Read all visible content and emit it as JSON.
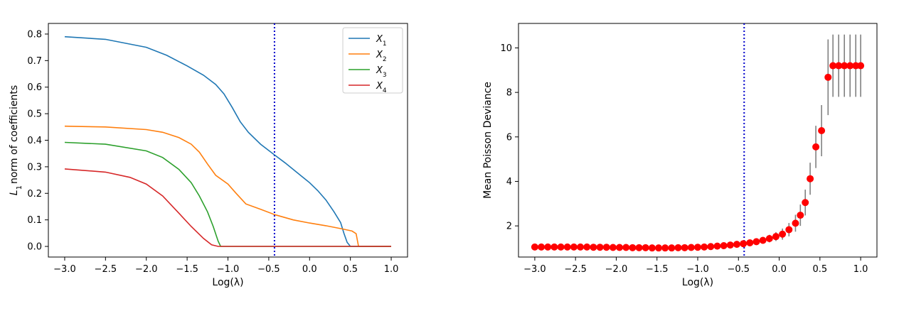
{
  "chart_data": [
    {
      "type": "line",
      "title": "",
      "xlabel": "Log(λ)",
      "ylabel": "L1 norm of coefficients",
      "xlim": [
        -3.2,
        1.2
      ],
      "ylim": [
        -0.04,
        0.84
      ],
      "xticks": [
        -3.0,
        -2.5,
        -2.0,
        -1.5,
        -1.0,
        -0.5,
        0.0,
        0.5,
        1.0
      ],
      "xtick_labels": [
        "−3.0",
        "−2.5",
        "−2.0",
        "−1.5",
        "−1.0",
        "−0.5",
        "0.0",
        "0.5",
        "1.0"
      ],
      "yticks": [
        0.0,
        0.1,
        0.2,
        0.3,
        0.4,
        0.5,
        0.6,
        0.7,
        0.8
      ],
      "ytick_labels": [
        "0.0",
        "0.1",
        "0.2",
        "0.3",
        "0.4",
        "0.5",
        "0.6",
        "0.7",
        "0.8"
      ],
      "vline": {
        "x": -0.43,
        "color": "#0000cc",
        "style": "dotted"
      },
      "grid": false,
      "legend": "top-right",
      "series": [
        {
          "name": "X1",
          "sub": "1",
          "color": "#1f77b4",
          "x": [
            -3.0,
            -2.5,
            -2.0,
            -1.75,
            -1.5,
            -1.3,
            -1.15,
            -1.05,
            -0.95,
            -0.85,
            -0.75,
            -0.6,
            -0.43,
            -0.3,
            -0.1,
            0.0,
            0.1,
            0.2,
            0.3,
            0.38,
            0.42,
            0.46,
            0.5,
            1.0
          ],
          "y": [
            0.79,
            0.78,
            0.75,
            0.72,
            0.68,
            0.645,
            0.61,
            0.575,
            0.525,
            0.47,
            0.43,
            0.385,
            0.345,
            0.315,
            0.265,
            0.24,
            0.21,
            0.175,
            0.13,
            0.09,
            0.05,
            0.015,
            0.0,
            0.0
          ]
        },
        {
          "name": "X2",
          "sub": "2",
          "color": "#ff7f0e",
          "x": [
            -3.0,
            -2.5,
            -2.0,
            -1.8,
            -1.6,
            -1.45,
            -1.35,
            -1.25,
            -1.15,
            -1.0,
            -0.9,
            -0.78,
            -0.6,
            -0.43,
            -0.2,
            0.0,
            0.2,
            0.4,
            0.52,
            0.57,
            0.6,
            1.0
          ],
          "y": [
            0.453,
            0.45,
            0.44,
            0.43,
            0.41,
            0.385,
            0.355,
            0.31,
            0.268,
            0.235,
            0.2,
            0.16,
            0.14,
            0.12,
            0.1,
            0.088,
            0.078,
            0.066,
            0.058,
            0.048,
            0.0,
            0.0
          ]
        },
        {
          "name": "X3",
          "sub": "3",
          "color": "#2ca02c",
          "x": [
            -3.0,
            -2.5,
            -2.0,
            -1.8,
            -1.6,
            -1.45,
            -1.35,
            -1.25,
            -1.18,
            -1.12,
            -1.09,
            1.0
          ],
          "y": [
            0.392,
            0.385,
            0.36,
            0.335,
            0.29,
            0.24,
            0.19,
            0.13,
            0.075,
            0.02,
            0.0,
            0.0
          ]
        },
        {
          "name": "X4",
          "sub": "4",
          "color": "#d62728",
          "x": [
            -3.0,
            -2.5,
            -2.2,
            -2.0,
            -1.8,
            -1.6,
            -1.45,
            -1.3,
            -1.2,
            -1.12,
            1.0
          ],
          "y": [
            0.292,
            0.28,
            0.26,
            0.235,
            0.19,
            0.125,
            0.075,
            0.03,
            0.006,
            0.0,
            0.0
          ]
        }
      ]
    },
    {
      "type": "scatter",
      "title": "",
      "xlabel": "Log(λ)",
      "ylabel": "Mean Poisson Deviance",
      "xlim": [
        -3.2,
        1.2
      ],
      "ylim": [
        0.6,
        11.1
      ],
      "xticks": [
        -3.0,
        -2.5,
        -2.0,
        -1.5,
        -1.0,
        -0.5,
        0.0,
        0.5,
        1.0
      ],
      "xtick_labels": [
        "−3.0",
        "−2.5",
        "−2.0",
        "−1.5",
        "−1.0",
        "−0.5",
        "0.0",
        "0.5",
        "1.0"
      ],
      "yticks": [
        2,
        4,
        6,
        8,
        10
      ],
      "ytick_labels": [
        "2",
        "4",
        "6",
        "8",
        "10"
      ],
      "vline": {
        "x": -0.43,
        "color": "#0000cc",
        "style": "dotted"
      },
      "grid": false,
      "marker_color": "#ff0000",
      "errorbar_color": "#808080",
      "x": [
        -3.0,
        -2.92,
        -2.84,
        -2.76,
        -2.68,
        -2.6,
        -2.52,
        -2.44,
        -2.36,
        -2.28,
        -2.2,
        -2.12,
        -2.04,
        -1.96,
        -1.88,
        -1.8,
        -1.72,
        -1.64,
        -1.56,
        -1.48,
        -1.4,
        -1.32,
        -1.24,
        -1.16,
        -1.08,
        -1.0,
        -0.92,
        -0.84,
        -0.76,
        -0.68,
        -0.6,
        -0.52,
        -0.44,
        -0.36,
        -0.28,
        -0.2,
        -0.12,
        -0.04,
        0.04,
        0.12,
        0.2,
        0.26,
        0.32,
        0.38,
        0.45,
        0.52,
        0.6,
        0.66,
        0.73,
        0.8,
        0.87,
        0.94,
        1.0
      ],
      "y": [
        1.05,
        1.05,
        1.05,
        1.05,
        1.05,
        1.05,
        1.05,
        1.05,
        1.05,
        1.04,
        1.04,
        1.04,
        1.03,
        1.03,
        1.03,
        1.02,
        1.02,
        1.02,
        1.01,
        1.01,
        1.01,
        1.01,
        1.02,
        1.02,
        1.03,
        1.04,
        1.05,
        1.07,
        1.09,
        1.11,
        1.14,
        1.17,
        1.2,
        1.24,
        1.29,
        1.35,
        1.43,
        1.52,
        1.63,
        1.83,
        2.12,
        2.48,
        3.05,
        4.12,
        5.55,
        6.28,
        8.68,
        9.2,
        9.2,
        9.2,
        9.2,
        9.2,
        9.2
      ],
      "err": [
        0.05,
        0.05,
        0.05,
        0.05,
        0.05,
        0.05,
        0.05,
        0.05,
        0.05,
        0.05,
        0.05,
        0.05,
        0.05,
        0.05,
        0.05,
        0.05,
        0.05,
        0.05,
        0.05,
        0.05,
        0.05,
        0.05,
        0.05,
        0.05,
        0.05,
        0.05,
        0.05,
        0.06,
        0.06,
        0.07,
        0.07,
        0.08,
        0.08,
        0.1,
        0.12,
        0.14,
        0.17,
        0.2,
        0.25,
        0.3,
        0.38,
        0.48,
        0.58,
        0.72,
        0.95,
        1.15,
        1.7,
        1.4,
        1.4,
        1.4,
        1.4,
        1.4,
        1.4
      ]
    }
  ]
}
